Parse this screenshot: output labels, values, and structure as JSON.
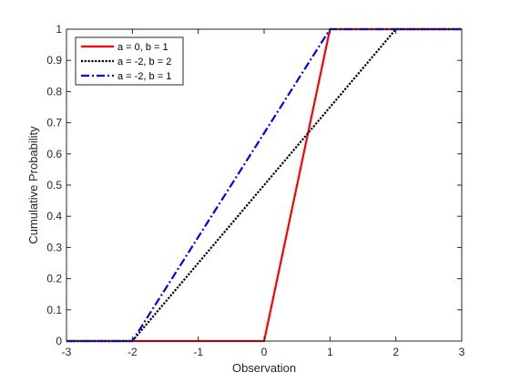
{
  "chart_data": {
    "type": "line",
    "title": "",
    "xlabel": "Observation",
    "ylabel": "Cumulative Probability",
    "xlim": [
      -3,
      3
    ],
    "ylim": [
      0,
      1
    ],
    "xticks": [
      -3,
      -2,
      -1,
      0,
      1,
      2,
      3
    ],
    "yticks": [
      0,
      0.1,
      0.2,
      0.3,
      0.4,
      0.5,
      0.6,
      0.7,
      0.8,
      0.9,
      1
    ],
    "grid": false,
    "legend_position": "top-left",
    "series": [
      {
        "name": "a = 0, b = 1",
        "color": "#ff0000",
        "style": "solid",
        "x": [
          -3,
          0,
          1,
          3
        ],
        "y": [
          0,
          0,
          1,
          1
        ]
      },
      {
        "name": "a = -2, b = 2",
        "color": "#000000",
        "style": "dotted",
        "x": [
          -3,
          -2,
          2,
          3
        ],
        "y": [
          0,
          0,
          1,
          1
        ]
      },
      {
        "name": "a = -2, b = 1",
        "color": "#0000ff",
        "style": "dashdot",
        "x": [
          -3,
          -2,
          1,
          3
        ],
        "y": [
          0,
          0,
          1,
          1
        ]
      }
    ]
  }
}
